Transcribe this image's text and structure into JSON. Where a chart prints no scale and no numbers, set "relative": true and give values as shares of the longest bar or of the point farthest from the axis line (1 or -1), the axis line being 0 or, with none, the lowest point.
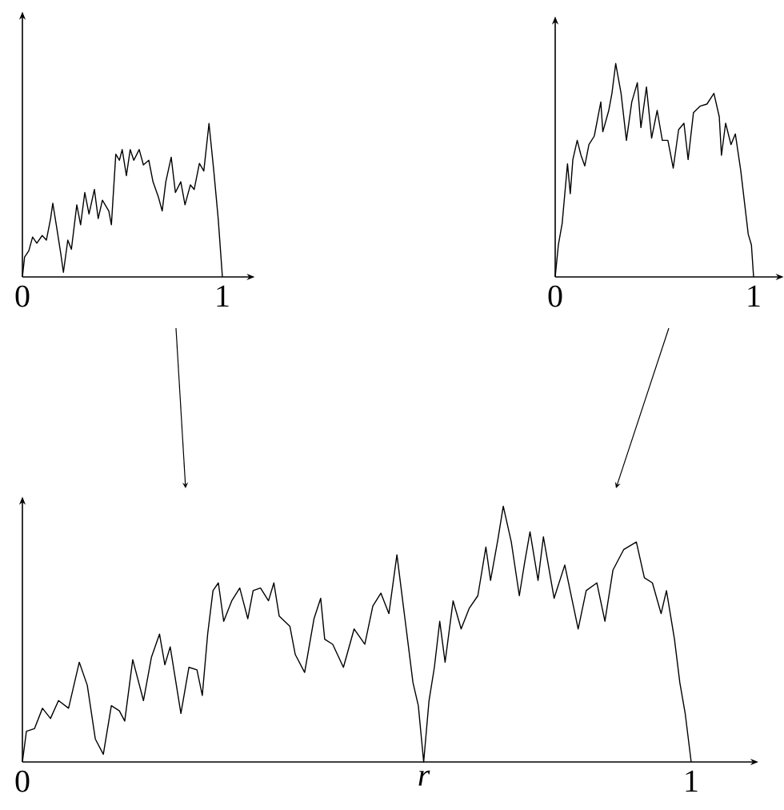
{
  "chart_data": [
    {
      "type": "line",
      "relative": true,
      "color": "#000000",
      "xlim": [
        0,
        1.14
      ],
      "xticks": [
        0,
        1
      ],
      "x": [
        0,
        0.011,
        0.032,
        0.051,
        0.072,
        0.099,
        0.12,
        0.141,
        0.152,
        0.173,
        0.192,
        0.205,
        0.227,
        0.245,
        0.272,
        0.291,
        0.312,
        0.333,
        0.36,
        0.379,
        0.4,
        0.432,
        0.445,
        0.467,
        0.485,
        0.499,
        0.52,
        0.539,
        0.557,
        0.584,
        0.605,
        0.632,
        0.653,
        0.68,
        0.699,
        0.717,
        0.744,
        0.765,
        0.792,
        0.813,
        0.84,
        0.859,
        0.885,
        0.907,
        0.933,
        0.957,
        0.979,
        1
      ],
      "values": [
        0,
        0.13,
        0.17,
        0.26,
        0.22,
        0.27,
        0.24,
        0.38,
        0.48,
        0.31,
        0.15,
        0.03,
        0.24,
        0.18,
        0.47,
        0.34,
        0.55,
        0.41,
        0.57,
        0.38,
        0.5,
        0.43,
        0.34,
        0.8,
        0.76,
        0.83,
        0.66,
        0.83,
        0.76,
        0.83,
        0.73,
        0.76,
        0.62,
        0.52,
        0.43,
        0.62,
        0.78,
        0.55,
        0.62,
        0.47,
        0.6,
        0.57,
        0.74,
        0.69,
        1,
        0.69,
        0.38,
        0
      ]
    },
    {
      "type": "line",
      "relative": true,
      "color": "#000000",
      "xlim": [
        0,
        1.13
      ],
      "xticks": [
        0,
        1
      ],
      "x": [
        0,
        0.016,
        0.035,
        0.062,
        0.076,
        0.089,
        0.111,
        0.13,
        0.149,
        0.17,
        0.197,
        0.23,
        0.24,
        0.27,
        0.286,
        0.305,
        0.332,
        0.359,
        0.386,
        0.414,
        0.432,
        0.46,
        0.486,
        0.514,
        0.54,
        0.568,
        0.595,
        0.622,
        0.649,
        0.67,
        0.697,
        0.73,
        0.765,
        0.8,
        0.827,
        0.838,
        0.859,
        0.886,
        0.908,
        0.935,
        0.954,
        0.973,
        0.989,
        1
      ],
      "values": [
        0,
        0.15,
        0.25,
        0.53,
        0.39,
        0.55,
        0.64,
        0.57,
        0.52,
        0.62,
        0.66,
        0.82,
        0.68,
        0.78,
        0.86,
        1,
        0.86,
        0.64,
        0.82,
        0.91,
        0.7,
        0.89,
        0.65,
        0.78,
        0.64,
        0.64,
        0.51,
        0.69,
        0.72,
        0.55,
        0.77,
        0.8,
        0.81,
        0.86,
        0.75,
        0.57,
        0.72,
        0.62,
        0.67,
        0.5,
        0.35,
        0.2,
        0.15,
        0
      ]
    },
    {
      "type": "line",
      "relative": true,
      "color": "#000000",
      "xlim": [
        0,
        1.094
      ],
      "xticks": [
        0,
        {
          "value": 0.6,
          "label": "r"
        },
        1
      ],
      "x": [
        0,
        0.006,
        0.018,
        0.03,
        0.042,
        0.054,
        0.069,
        0.085,
        0.097,
        0.109,
        0.121,
        0.133,
        0.145,
        0.153,
        0.165,
        0.181,
        0.193,
        0.205,
        0.213,
        0.221,
        0.237,
        0.249,
        0.261,
        0.269,
        0.277,
        0.285,
        0.293,
        0.301,
        0.313,
        0.325,
        0.337,
        0.345,
        0.356,
        0.368,
        0.376,
        0.384,
        0.4,
        0.408,
        0.422,
        0.436,
        0.446,
        0.452,
        0.464,
        0.48,
        0.496,
        0.512,
        0.524,
        0.536,
        0.548,
        0.56,
        0.572,
        0.584,
        0.592,
        0.6,
        0.608,
        0.616,
        0.624,
        0.632,
        0.644,
        0.656,
        0.668,
        0.681,
        0.693,
        0.7,
        0.711,
        0.719,
        0.731,
        0.743,
        0.751,
        0.759,
        0.771,
        0.779,
        0.795,
        0.811,
        0.831,
        0.843,
        0.859,
        0.871,
        0.883,
        0.899,
        0.918,
        0.93,
        0.942,
        0.955,
        0.963,
        0.975,
        0.983,
        0.991,
        1
      ],
      "values": [
        0,
        0.12,
        0.13,
        0.21,
        0.17,
        0.24,
        0.21,
        0.39,
        0.3,
        0.09,
        0.03,
        0.22,
        0.2,
        0.16,
        0.4,
        0.24,
        0.41,
        0.5,
        0.38,
        0.45,
        0.19,
        0.37,
        0.36,
        0.26,
        0.5,
        0.67,
        0.7,
        0.55,
        0.63,
        0.68,
        0.56,
        0.67,
        0.68,
        0.63,
        0.7,
        0.57,
        0.53,
        0.42,
        0.35,
        0.56,
        0.64,
        0.48,
        0.46,
        0.37,
        0.52,
        0.46,
        0.61,
        0.66,
        0.58,
        0.81,
        0.56,
        0.31,
        0.22,
        0,
        0.24,
        0.37,
        0.55,
        0.39,
        0.63,
        0.52,
        0.6,
        0.65,
        0.84,
        0.71,
        0.87,
        1,
        0.86,
        0.65,
        0.78,
        0.9,
        0.71,
        0.88,
        0.64,
        0.77,
        0.52,
        0.67,
        0.7,
        0.55,
        0.75,
        0.83,
        0.86,
        0.72,
        0.7,
        0.58,
        0.67,
        0.48,
        0.31,
        0.19,
        0
      ]
    }
  ]
}
